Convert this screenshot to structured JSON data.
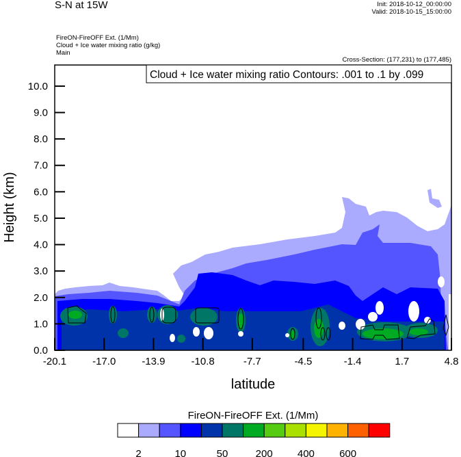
{
  "header": {
    "title": "S-N at 15W",
    "init": "Init: 2018-10-12_00:00:00",
    "valid": "Valid: 2018-10-15_15:00:00",
    "fields": [
      "FireON-FireOFF Ext.   (1/Mm)",
      "Cloud + Ice water mixing ratio   (g/kg)",
      "Main"
    ],
    "cross_section": "Cross-Section: (177,231) to (177,485)"
  },
  "chart_data": {
    "type": "heatmap",
    "title": "S-N at 15W",
    "contour_label": "Cloud + Ice water mixing ratio Contours: .001 to .1 by .099",
    "xlabel": "latitude",
    "ylabel": "Height (km)",
    "xlim": [
      -20.1,
      4.8
    ],
    "ylim": [
      0,
      10.8
    ],
    "xticks": [
      "-20.1",
      "-17.0",
      "-13.9",
      "-10.8",
      "-7.7",
      "-4.5",
      "-1.4",
      "1.7",
      "4.8"
    ],
    "xtick_values": [
      -20.1,
      -17.0,
      -13.9,
      -10.8,
      -7.7,
      -4.5,
      -1.4,
      1.7,
      4.8
    ],
    "yticks": [
      "0.0",
      "1.0",
      "2.0",
      "3.0",
      "4.0",
      "5.0",
      "6.0",
      "7.0",
      "8.0",
      "9.0",
      "10.0"
    ],
    "ytick_values": [
      0,
      1,
      2,
      3,
      4,
      5,
      6,
      7,
      8,
      9,
      10
    ],
    "colorbar": {
      "title": "FireON-FireOFF Ext.  (1/Mm)",
      "colors": [
        "#ffffff",
        "#aaaaff",
        "#5555ff",
        "#0000ff",
        "#0033aa",
        "#007766",
        "#00aa22",
        "#55cc11",
        "#aae000",
        "#f5f500",
        "#ffb300",
        "#ff6000",
        "#ff0000"
      ],
      "labels": [
        "2",
        "10",
        "50",
        "200",
        "400",
        "600"
      ]
    },
    "layers_description_levels": [
      "2",
      "10",
      "50",
      "200"
    ]
  }
}
